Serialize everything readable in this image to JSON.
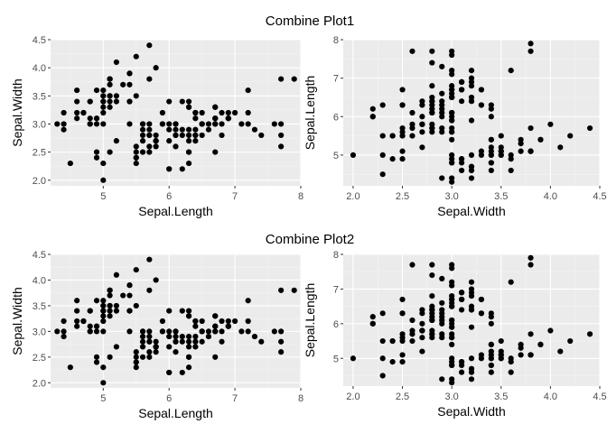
{
  "colors": {
    "panel_background": "#ebebeb",
    "grid_major": "#ffffff",
    "grid_minor": "#f4f4f4",
    "point": "#000000",
    "tick_text": "#4d4d4d"
  },
  "groups": [
    {
      "title": "Combine Plot1"
    },
    {
      "title": "Combine Plot2"
    }
  ],
  "chart_data": [
    {
      "type": "scatter",
      "group": 0,
      "xlabel": "Sepal.Length",
      "ylabel": "Sepal.Width",
      "xlim": [
        4.2,
        8.0
      ],
      "ylim": [
        1.9,
        4.5
      ],
      "xticks": [
        5,
        6,
        7,
        8
      ],
      "yticks": [
        2.0,
        2.5,
        3.0,
        3.5,
        4.0,
        4.5
      ],
      "grid": true,
      "points_source": "iris.sepal_length_width"
    },
    {
      "type": "scatter",
      "group": 0,
      "xlabel": "Sepal.Width",
      "ylabel": "Sepal.Length",
      "xlim": [
        1.9,
        4.5
      ],
      "ylim": [
        4.2,
        8.0
      ],
      "xticks": [
        2.0,
        2.5,
        3.0,
        3.5,
        4.0,
        4.5
      ],
      "yticks": [
        5,
        6,
        7,
        8
      ],
      "grid": true,
      "points_source": "iris.sepal_width_length"
    },
    {
      "type": "scatter",
      "group": 1,
      "xlabel": "Sepal.Length",
      "ylabel": "Sepal.Width",
      "xlim": [
        4.2,
        8.0
      ],
      "ylim": [
        1.9,
        4.5
      ],
      "xticks": [
        5,
        6,
        7,
        8
      ],
      "yticks": [
        2.0,
        2.5,
        3.0,
        3.5,
        4.0,
        4.5
      ],
      "grid": true,
      "points_source": "iris.sepal_length_width"
    },
    {
      "type": "scatter",
      "group": 1,
      "xlabel": "Sepal.Width",
      "ylabel": "Sepal.Length",
      "xlim": [
        1.9,
        4.5
      ],
      "ylim": [
        4.2,
        8.0
      ],
      "xticks": [
        2.0,
        2.5,
        3.0,
        3.5,
        4.0,
        4.5
      ],
      "yticks": [
        5,
        6,
        7,
        8
      ],
      "grid": true,
      "points_source": "iris.sepal_width_length"
    }
  ],
  "iris": {
    "sepal_length": [
      5.1,
      4.9,
      4.7,
      4.6,
      5.0,
      5.4,
      4.6,
      5.0,
      4.4,
      4.9,
      5.4,
      4.8,
      4.8,
      4.3,
      5.8,
      5.7,
      5.4,
      5.1,
      5.7,
      5.1,
      5.4,
      5.1,
      4.6,
      5.1,
      4.8,
      5.0,
      5.0,
      5.2,
      5.2,
      4.7,
      4.8,
      5.4,
      5.2,
      5.5,
      4.9,
      5.0,
      5.5,
      4.9,
      4.4,
      5.1,
      5.0,
      4.5,
      4.4,
      5.0,
      5.1,
      4.8,
      5.1,
      4.6,
      5.3,
      5.0,
      7.0,
      6.4,
      6.9,
      5.5,
      6.5,
      5.7,
      6.3,
      4.9,
      6.6,
      5.2,
      5.0,
      5.9,
      6.0,
      6.1,
      5.6,
      6.7,
      5.6,
      5.8,
      6.2,
      5.6,
      5.9,
      6.1,
      6.3,
      6.1,
      6.4,
      6.6,
      6.8,
      6.7,
      6.0,
      5.7,
      5.5,
      5.5,
      5.8,
      6.0,
      5.4,
      6.0,
      6.7,
      6.3,
      5.6,
      5.5,
      5.5,
      6.1,
      5.8,
      5.0,
      5.6,
      5.7,
      5.7,
      6.2,
      5.1,
      5.7,
      6.3,
      5.8,
      7.1,
      6.3,
      6.5,
      7.6,
      4.9,
      7.3,
      6.7,
      7.2,
      6.5,
      6.4,
      6.8,
      5.7,
      5.8,
      6.4,
      6.5,
      7.7,
      7.7,
      6.0,
      6.9,
      5.6,
      7.7,
      6.3,
      6.7,
      7.2,
      6.2,
      6.1,
      6.4,
      7.2,
      7.4,
      7.9,
      6.4,
      6.3,
      6.1,
      7.7,
      6.3,
      6.4,
      6.0,
      6.9,
      6.7,
      6.9,
      5.8,
      6.8,
      6.7,
      6.7,
      6.3,
      6.5,
      6.2,
      5.9
    ],
    "sepal_width": [
      3.5,
      3.0,
      3.2,
      3.1,
      3.6,
      3.9,
      3.4,
      3.4,
      2.9,
      3.1,
      3.7,
      3.4,
      3.0,
      3.0,
      4.0,
      4.4,
      3.9,
      3.5,
      3.8,
      3.8,
      3.4,
      3.7,
      3.6,
      3.3,
      3.4,
      3.0,
      3.4,
      3.5,
      3.4,
      3.2,
      3.1,
      3.4,
      4.1,
      4.2,
      3.1,
      3.2,
      3.5,
      3.6,
      3.0,
      3.4,
      3.5,
      2.3,
      3.2,
      3.5,
      3.8,
      3.0,
      3.8,
      3.2,
      3.7,
      3.3,
      3.2,
      3.2,
      3.1,
      2.3,
      2.8,
      2.8,
      3.3,
      2.4,
      2.9,
      2.7,
      2.0,
      3.0,
      2.2,
      2.9,
      2.9,
      3.1,
      3.0,
      2.7,
      2.2,
      2.5,
      3.2,
      2.8,
      2.5,
      2.8,
      2.9,
      3.0,
      2.8,
      3.0,
      2.9,
      2.6,
      2.4,
      2.4,
      2.7,
      2.7,
      3.0,
      3.4,
      3.1,
      2.3,
      3.0,
      2.5,
      2.6,
      3.0,
      2.6,
      2.3,
      2.7,
      3.0,
      2.9,
      2.9,
      2.5,
      2.8,
      3.3,
      2.7,
      3.0,
      2.9,
      3.0,
      3.0,
      2.5,
      2.9,
      2.5,
      3.6,
      3.2,
      2.7,
      3.0,
      2.5,
      2.8,
      3.2,
      3.0,
      3.8,
      2.6,
      2.2,
      3.2,
      2.8,
      2.8,
      2.7,
      3.3,
      3.2,
      2.8,
      3.0,
      2.8,
      3.0,
      2.8,
      3.8,
      2.8,
      2.8,
      2.6,
      3.0,
      3.4,
      3.1,
      3.0,
      3.1,
      3.1,
      3.1,
      2.7,
      3.2,
      3.3,
      3.0,
      2.5,
      3.0,
      3.4,
      3.0
    ]
  }
}
